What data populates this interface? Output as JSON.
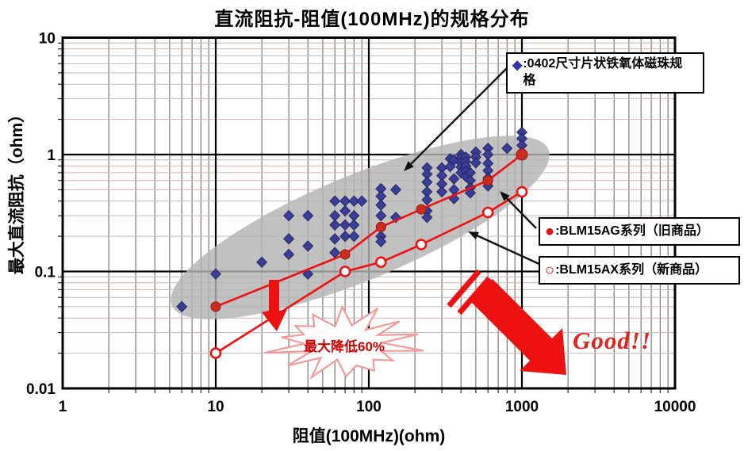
{
  "chart_data": {
    "type": "scatter",
    "title": "直流阻抗-阻值(100MHz)的规格分布",
    "xlabel": "阻值(100MHz)(ohm)",
    "ylabel": "最大直流阻抗（ohm）",
    "x_scale": "log",
    "y_scale": "log",
    "xlim": [
      1,
      10000
    ],
    "ylim": [
      0.01,
      10
    ],
    "grid": true,
    "x_ticks": [
      [
        1,
        "1"
      ],
      [
        10,
        "10"
      ],
      [
        100,
        "100"
      ],
      [
        1000,
        "1000"
      ],
      [
        10000,
        "10000"
      ]
    ],
    "y_ticks": [
      [
        10,
        "10"
      ],
      [
        1,
        "1"
      ],
      [
        0.1,
        "0.1"
      ],
      [
        0.01,
        "0.01"
      ]
    ],
    "highlight_ellipse": "gray region enclosing 0402 ferrite bead spec cloud",
    "series": [
      {
        "name": "0402尺寸片状铁氧体磁珠规格",
        "type": "scatter",
        "marker": "diamond",
        "color": "#3b3e98",
        "points": [
          [
            6,
            0.05
          ],
          [
            10,
            0.095
          ],
          [
            20,
            0.12
          ],
          [
            30,
            0.3
          ],
          [
            30,
            0.19
          ],
          [
            30,
            0.14
          ],
          [
            40,
            0.3
          ],
          [
            40,
            0.165
          ],
          [
            40,
            0.095
          ],
          [
            60,
            0.4
          ],
          [
            60,
            0.3
          ],
          [
            60,
            0.25
          ],
          [
            60,
            0.19
          ],
          [
            60,
            0.145
          ],
          [
            70,
            0.4
          ],
          [
            70,
            0.33
          ],
          [
            70,
            0.25
          ],
          [
            70,
            0.2
          ],
          [
            80,
            0.4
          ],
          [
            80,
            0.3
          ],
          [
            80,
            0.25
          ],
          [
            80,
            0.2
          ],
          [
            90,
            0.4
          ],
          [
            120,
            0.51
          ],
          [
            120,
            0.44
          ],
          [
            120,
            0.37
          ],
          [
            120,
            0.3
          ],
          [
            120,
            0.2
          ],
          [
            120,
            0.18
          ],
          [
            150,
            0.5
          ],
          [
            150,
            0.29
          ],
          [
            240,
            0.77
          ],
          [
            240,
            0.68
          ],
          [
            240,
            0.58
          ],
          [
            240,
            0.48
          ],
          [
            240,
            0.41
          ],
          [
            240,
            0.33
          ],
          [
            240,
            0.29
          ],
          [
            300,
            0.77
          ],
          [
            300,
            0.66
          ],
          [
            300,
            0.56
          ],
          [
            300,
            0.48
          ],
          [
            340,
            0.92
          ],
          [
            340,
            0.79
          ],
          [
            360,
            0.9
          ],
          [
            360,
            0.62
          ],
          [
            360,
            0.5
          ],
          [
            360,
            0.42
          ],
          [
            400,
            1.0
          ],
          [
            400,
            0.93
          ],
          [
            400,
            0.85
          ],
          [
            400,
            0.78
          ],
          [
            400,
            0.7
          ],
          [
            430,
            0.95
          ],
          [
            430,
            0.87
          ],
          [
            430,
            0.8
          ],
          [
            430,
            0.72
          ],
          [
            430,
            0.65
          ],
          [
            460,
            0.7
          ],
          [
            460,
            0.6
          ],
          [
            460,
            0.52
          ],
          [
            460,
            0.47
          ],
          [
            500,
            1.05
          ],
          [
            500,
            0.95
          ],
          [
            500,
            0.85
          ],
          [
            600,
            1.13
          ],
          [
            600,
            1.0
          ],
          [
            600,
            0.84
          ],
          [
            600,
            0.73
          ],
          [
            600,
            0.63
          ],
          [
            600,
            0.54
          ],
          [
            800,
            1.13
          ],
          [
            1000,
            1.55
          ],
          [
            1000,
            1.37
          ],
          [
            1000,
            1.2
          ],
          [
            1000,
            1.05
          ]
        ]
      },
      {
        "name": "BLM15AG系列（旧商品）",
        "type": "line",
        "marker": "circle-filled",
        "line_color": "#ee1111",
        "marker_color": "#cf2a20",
        "points": [
          [
            10,
            0.05
          ],
          [
            70,
            0.14
          ],
          [
            120,
            0.24
          ],
          [
            220,
            0.34
          ],
          [
            600,
            0.6
          ],
          [
            1000,
            1.0
          ]
        ]
      },
      {
        "name": "BLM15AX系列（新商品）",
        "type": "line",
        "marker": "circle-open",
        "line_color": "#ee1111",
        "marker_color": "#ffffff",
        "points": [
          [
            10,
            0.02
          ],
          [
            70,
            0.1
          ],
          [
            120,
            0.12
          ],
          [
            220,
            0.17
          ],
          [
            600,
            0.32
          ],
          [
            1000,
            0.48
          ]
        ]
      }
    ],
    "annotations": {
      "burst_label": "最大降低60%",
      "good_label": "Good!!"
    }
  },
  "legends": [
    {
      "marker": "◆",
      "marker_color": "#2d35a8",
      "label": ":0402尺寸片状铁氧体磁珠规格"
    },
    {
      "marker": "●",
      "marker_color": "#ee1111",
      "label": ":BLM15AG系列（旧商品）"
    },
    {
      "marker": "○",
      "marker_color": "#ee1111",
      "label": ":BLM15AX系列（新商品）"
    }
  ]
}
